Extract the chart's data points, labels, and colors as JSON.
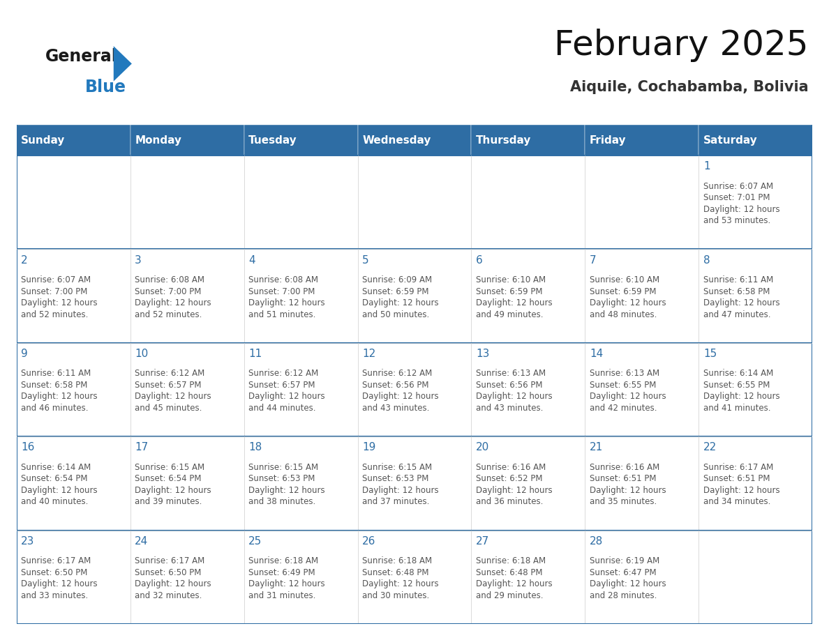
{
  "title": "February 2025",
  "subtitle": "Aiquile, Cochabamba, Bolivia",
  "header_bg": "#2E6DA4",
  "header_text_color": "#FFFFFF",
  "cell_bg": "#FFFFFF",
  "day_number_color": "#2E6DA4",
  "info_text_color": "#555555",
  "border_color": "#2E6DA4",
  "grid_line_color": "#CCCCCC",
  "days_of_week": [
    "Sunday",
    "Monday",
    "Tuesday",
    "Wednesday",
    "Thursday",
    "Friday",
    "Saturday"
  ],
  "calendar": [
    [
      null,
      null,
      null,
      null,
      null,
      null,
      {
        "day": "1",
        "sunrise": "6:07 AM",
        "sunset": "7:01 PM",
        "daylight": "12 hours\nand 53 minutes."
      }
    ],
    [
      {
        "day": "2",
        "sunrise": "6:07 AM",
        "sunset": "7:00 PM",
        "daylight": "12 hours\nand 52 minutes."
      },
      {
        "day": "3",
        "sunrise": "6:08 AM",
        "sunset": "7:00 PM",
        "daylight": "12 hours\nand 52 minutes."
      },
      {
        "day": "4",
        "sunrise": "6:08 AM",
        "sunset": "7:00 PM",
        "daylight": "12 hours\nand 51 minutes."
      },
      {
        "day": "5",
        "sunrise": "6:09 AM",
        "sunset": "6:59 PM",
        "daylight": "12 hours\nand 50 minutes."
      },
      {
        "day": "6",
        "sunrise": "6:10 AM",
        "sunset": "6:59 PM",
        "daylight": "12 hours\nand 49 minutes."
      },
      {
        "day": "7",
        "sunrise": "6:10 AM",
        "sunset": "6:59 PM",
        "daylight": "12 hours\nand 48 minutes."
      },
      {
        "day": "8",
        "sunrise": "6:11 AM",
        "sunset": "6:58 PM",
        "daylight": "12 hours\nand 47 minutes."
      }
    ],
    [
      {
        "day": "9",
        "sunrise": "6:11 AM",
        "sunset": "6:58 PM",
        "daylight": "12 hours\nand 46 minutes."
      },
      {
        "day": "10",
        "sunrise": "6:12 AM",
        "sunset": "6:57 PM",
        "daylight": "12 hours\nand 45 minutes."
      },
      {
        "day": "11",
        "sunrise": "6:12 AM",
        "sunset": "6:57 PM",
        "daylight": "12 hours\nand 44 minutes."
      },
      {
        "day": "12",
        "sunrise": "6:12 AM",
        "sunset": "6:56 PM",
        "daylight": "12 hours\nand 43 minutes."
      },
      {
        "day": "13",
        "sunrise": "6:13 AM",
        "sunset": "6:56 PM",
        "daylight": "12 hours\nand 43 minutes."
      },
      {
        "day": "14",
        "sunrise": "6:13 AM",
        "sunset": "6:55 PM",
        "daylight": "12 hours\nand 42 minutes."
      },
      {
        "day": "15",
        "sunrise": "6:14 AM",
        "sunset": "6:55 PM",
        "daylight": "12 hours\nand 41 minutes."
      }
    ],
    [
      {
        "day": "16",
        "sunrise": "6:14 AM",
        "sunset": "6:54 PM",
        "daylight": "12 hours\nand 40 minutes."
      },
      {
        "day": "17",
        "sunrise": "6:15 AM",
        "sunset": "6:54 PM",
        "daylight": "12 hours\nand 39 minutes."
      },
      {
        "day": "18",
        "sunrise": "6:15 AM",
        "sunset": "6:53 PM",
        "daylight": "12 hours\nand 38 minutes."
      },
      {
        "day": "19",
        "sunrise": "6:15 AM",
        "sunset": "6:53 PM",
        "daylight": "12 hours\nand 37 minutes."
      },
      {
        "day": "20",
        "sunrise": "6:16 AM",
        "sunset": "6:52 PM",
        "daylight": "12 hours\nand 36 minutes."
      },
      {
        "day": "21",
        "sunrise": "6:16 AM",
        "sunset": "6:51 PM",
        "daylight": "12 hours\nand 35 minutes."
      },
      {
        "day": "22",
        "sunrise": "6:17 AM",
        "sunset": "6:51 PM",
        "daylight": "12 hours\nand 34 minutes."
      }
    ],
    [
      {
        "day": "23",
        "sunrise": "6:17 AM",
        "sunset": "6:50 PM",
        "daylight": "12 hours\nand 33 minutes."
      },
      {
        "day": "24",
        "sunrise": "6:17 AM",
        "sunset": "6:50 PM",
        "daylight": "12 hours\nand 32 minutes."
      },
      {
        "day": "25",
        "sunrise": "6:18 AM",
        "sunset": "6:49 PM",
        "daylight": "12 hours\nand 31 minutes."
      },
      {
        "day": "26",
        "sunrise": "6:18 AM",
        "sunset": "6:48 PM",
        "daylight": "12 hours\nand 30 minutes."
      },
      {
        "day": "27",
        "sunrise": "6:18 AM",
        "sunset": "6:48 PM",
        "daylight": "12 hours\nand 29 minutes."
      },
      {
        "day": "28",
        "sunrise": "6:19 AM",
        "sunset": "6:47 PM",
        "daylight": "12 hours\nand 28 minutes."
      },
      null
    ]
  ],
  "logo_general_color": "#1a1a1a",
  "logo_blue_color": "#2279BD",
  "logo_triangle_color": "#2279BD",
  "title_fontsize": 36,
  "subtitle_fontsize": 15,
  "header_fontsize": 11,
  "day_num_fontsize": 11,
  "info_fontsize": 8.5
}
